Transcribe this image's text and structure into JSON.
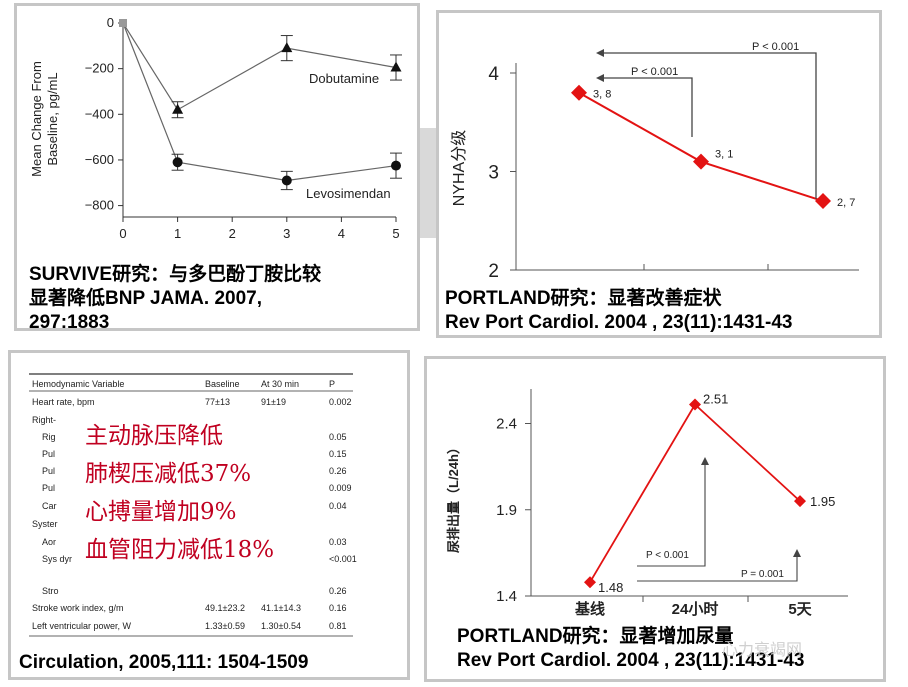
{
  "chart_data": [
    {
      "type": "line",
      "ylabel": "Mean Change From Baseline, pg/mL",
      "x": [
        0,
        1,
        3,
        5
      ],
      "xticks": [
        "0",
        "1",
        "2",
        "3",
        "4",
        "5"
      ],
      "yticks": [
        "0",
        "−200",
        "−400",
        "−600",
        "−800"
      ],
      "ylim": [
        -850,
        0
      ],
      "series": [
        {
          "name": "Dobutamine",
          "x": [
            0,
            1,
            3,
            5
          ],
          "values": [
            0,
            -380,
            -110,
            -195
          ],
          "err": [
            0,
            35,
            55,
            55
          ]
        },
        {
          "name": "Levosimendan",
          "x": [
            0,
            1,
            3,
            5
          ],
          "values": [
            0,
            -610,
            -690,
            -625
          ],
          "err": [
            0,
            35,
            40,
            55
          ]
        }
      ],
      "caption": [
        "SURVIVE研究：与多巴酚丁胺比较",
        "显著降低BNP  JAMA. 2007,",
        "297:1883"
      ]
    },
    {
      "type": "line",
      "ylabel": "NYHA分级",
      "yticks": [
        "4",
        "3",
        "2"
      ],
      "ylim": [
        2,
        4
      ],
      "series": [
        {
          "name": "",
          "values": [
            3.8,
            3.1,
            2.7
          ]
        }
      ],
      "point_labels": [
        "3, 8",
        "3, 1",
        "2, 7"
      ],
      "annotations": [
        "P < 0.001",
        "P < 0.001"
      ],
      "caption": [
        "PORTLAND研究：显著改善症状",
        "Rev Port Cardiol. 2004 , 23(11):1431-43"
      ]
    },
    {
      "type": "table",
      "columns": [
        "Hemodynamic Variable",
        "Baseline",
        "At 30 min",
        "P"
      ],
      "rows": [
        [
          "Heart rate, bpm",
          "77±13",
          "91±19",
          "0.002"
        ],
        [
          "Right-",
          "",
          "",
          ""
        ],
        [
          "Rig",
          "",
          "",
          "0.05"
        ],
        [
          "Pul",
          "",
          "",
          "0.15"
        ],
        [
          "Pul",
          "",
          "",
          "0.26"
        ],
        [
          "Pul",
          "",
          "",
          "0.009"
        ],
        [
          "Car",
          "",
          "",
          "0.04"
        ],
        [
          "Syster",
          "",
          "",
          ""
        ],
        [
          "Aor",
          "",
          "",
          "0.03"
        ],
        [
          "Sys dyr",
          "",
          "",
          "<0.001"
        ],
        [
          "Stro",
          "",
          "",
          "0.26"
        ],
        [
          "Stroke work index, g/m",
          "49.1±23.2",
          "41.1±14.3",
          "0.16"
        ],
        [
          "Left ventricular power, W",
          "1.33±0.59",
          "1.30±0.54",
          "0.81"
        ]
      ],
      "overlay": [
        "主动脉压降低",
        "肺楔压减低37%",
        "心搏量增加9%",
        "血管阻力减低18%"
      ],
      "caption": "Circulation, 2005,111: 1504-1509"
    },
    {
      "type": "line",
      "ylabel": "尿排出量（L/24h）",
      "categories": [
        "基线",
        "24小时",
        "5天"
      ],
      "yticks": [
        "2.4",
        "1.9",
        "1.4"
      ],
      "ylim": [
        1.4,
        2.6
      ],
      "series": [
        {
          "name": "",
          "values": [
            1.48,
            2.51,
            1.95
          ]
        }
      ],
      "point_labels": [
        "1.48",
        "2.51",
        "1.95"
      ],
      "annotations": [
        "P < 0.001",
        "P = 0.001"
      ],
      "caption": [
        "PORTLAND研究：显著增加尿量",
        "Rev Port Cardiol. 2004 , 23(11):1431-43"
      ]
    }
  ],
  "watermark": "心力衰竭网",
  "colors": {
    "red": "#e31313",
    "frame": "#c6c6c6",
    "overlay_text": "#c00020"
  }
}
